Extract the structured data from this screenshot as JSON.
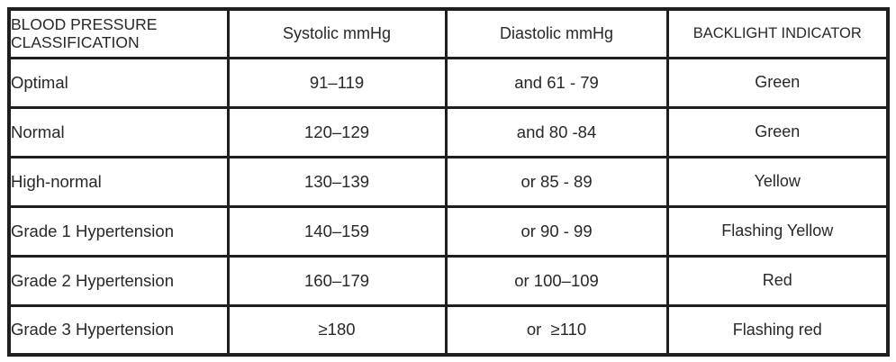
{
  "table": {
    "headers": {
      "classification": "BLOOD PRESSURE CLASSIFICATION",
      "systolic": "Systolic mmHg",
      "diastolic": "Diastolic mmHg",
      "backlight": "BACKLIGHT INDICATOR"
    },
    "rows": [
      {
        "classification": "Optimal",
        "systolic": "91–119",
        "diastolic": "and 61 - 79",
        "indicator": "Green"
      },
      {
        "classification": "Normal",
        "systolic": "120–129",
        "diastolic": "and 80 -84",
        "indicator": "Green"
      },
      {
        "classification": "High-normal",
        "systolic": "130–139",
        "diastolic": "or 85 - 89",
        "indicator": "Yellow"
      },
      {
        "classification": "Grade 1 Hypertension",
        "systolic": "140–159",
        "diastolic": "or 90 - 99",
        "indicator": "Flashing Yellow"
      },
      {
        "classification": "Grade 2 Hypertension",
        "systolic": "160–179",
        "diastolic": "or 100–109",
        "indicator": "Red"
      },
      {
        "classification": "Grade 3 Hypertension",
        "systolic": "≥180",
        "diastolic": "or  ≥110",
        "indicator": "Flashing red"
      }
    ],
    "colors": {
      "border": "#1e1e1e",
      "text": "#282828",
      "background": "#ffffff"
    }
  }
}
